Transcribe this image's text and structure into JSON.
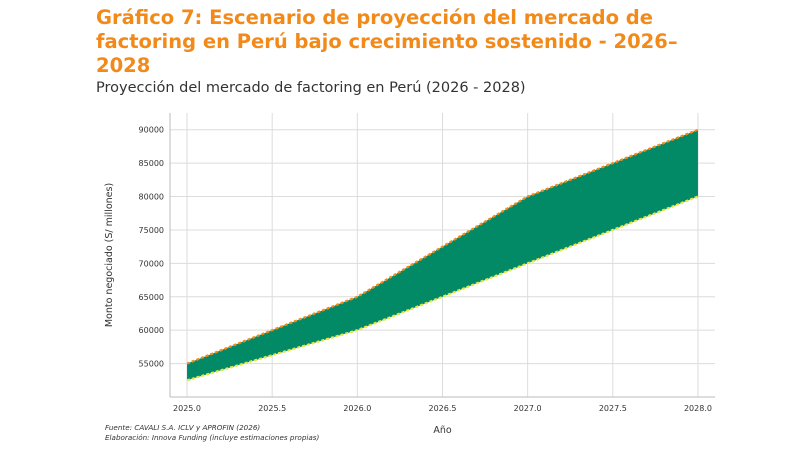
{
  "header": {
    "title": "Gráfico 7: Escenario de proyección del mercado de factoring en Perú bajo crecimiento sostenido - 2026–2028",
    "subtitle": "Proyección del mercado de factoring en Perú (2026 - 2028)"
  },
  "footer": {
    "source": "Fuente: CAVALI S.A. ICLV y APROFIN (2026)",
    "credit": "Elaboración: Innova Funding (incluye estimaciones propias)"
  },
  "colors": {
    "band_fill": "#028a66",
    "upper_line": "#f28a1a",
    "lower_line": "#e8e64a",
    "title": "#f28a1a"
  },
  "chart_data": {
    "type": "area",
    "title": "Proyección del mercado de factoring en Perú (2026 - 2028)",
    "xlabel": "Año",
    "ylabel": "Monto negociado (S/ millones)",
    "x_ticks": [
      "2025.0",
      "2025.5",
      "2026.0",
      "2026.5",
      "2027.0",
      "2027.5",
      "2028.0"
    ],
    "y_ticks": [
      "55000",
      "60000",
      "65000",
      "70000",
      "75000",
      "80000",
      "85000",
      "90000"
    ],
    "xlim": [
      2024.9,
      2028.1
    ],
    "ylim": [
      50000,
      92500
    ],
    "grid": true,
    "x": [
      2025.0,
      2026.0,
      2026.5,
      2027.0,
      2028.0
    ],
    "series": [
      {
        "values": [
          55000,
          65000,
          72500,
          80000,
          90000
        ]
      },
      {
        "values": [
          52500,
          60000,
          65000,
          70000,
          80000
        ]
      }
    ]
  }
}
